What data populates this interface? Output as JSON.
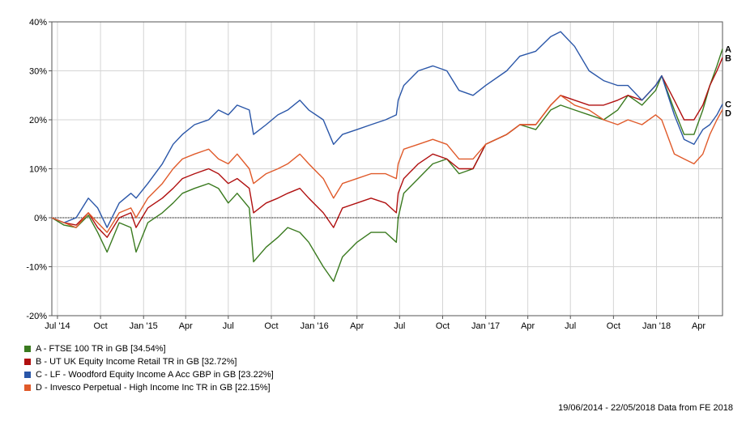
{
  "chart_data": {
    "type": "line",
    "x_range": [
      "2014-06-19",
      "2018-05-22"
    ],
    "ylim": [
      -20,
      40
    ],
    "y_ticks": [
      40,
      30,
      20,
      10,
      0,
      -10,
      -20
    ],
    "y_tick_labels": [
      "40%",
      "30%",
      "20%",
      "10%",
      "0%",
      "-10%",
      "-20%"
    ],
    "x_ticks": [
      "2014-07-01",
      "2014-10-01",
      "2015-01-01",
      "2015-04-01",
      "2015-07-01",
      "2015-10-01",
      "2016-01-01",
      "2016-04-01",
      "2016-07-01",
      "2016-10-01",
      "2017-01-01",
      "2017-04-01",
      "2017-07-01",
      "2017-10-01",
      "2018-01-01",
      "2018-04-01"
    ],
    "x_tick_labels": [
      "Jul '14",
      "Oct",
      "Jan '15",
      "Apr",
      "Jul",
      "Oct",
      "Jan '16",
      "Apr",
      "Jul",
      "Oct",
      "Jan '17",
      "Apr",
      "Jul",
      "Oct",
      "Jan '18",
      "Apr"
    ],
    "grid": true,
    "legend_position": "bottom-left",
    "series": [
      {
        "name": "A - FTSE 100 TR in GB [34.54%]",
        "label": "A",
        "color": "#3a7a1f",
        "points": [
          [
            "2014-06-19",
            0
          ],
          [
            "2014-07-15",
            -1.5
          ],
          [
            "2014-08-10",
            -2
          ],
          [
            "2014-09-05",
            0.5
          ],
          [
            "2014-09-25",
            -3
          ],
          [
            "2014-10-15",
            -7
          ],
          [
            "2014-11-10",
            -1
          ],
          [
            "2014-12-05",
            -2
          ],
          [
            "2014-12-16",
            -7
          ],
          [
            "2015-01-10",
            -1
          ],
          [
            "2015-02-10",
            1
          ],
          [
            "2015-03-05",
            3
          ],
          [
            "2015-03-25",
            5
          ],
          [
            "2015-04-20",
            6
          ],
          [
            "2015-05-20",
            7
          ],
          [
            "2015-06-10",
            6
          ],
          [
            "2015-07-01",
            3
          ],
          [
            "2015-07-20",
            5
          ],
          [
            "2015-08-15",
            2
          ],
          [
            "2015-08-24",
            -9
          ],
          [
            "2015-09-20",
            -6
          ],
          [
            "2015-10-15",
            -4
          ],
          [
            "2015-11-05",
            -2
          ],
          [
            "2015-12-01",
            -3
          ],
          [
            "2015-12-20",
            -5
          ],
          [
            "2016-01-20",
            -10
          ],
          [
            "2016-02-11",
            -13
          ],
          [
            "2016-03-01",
            -8
          ],
          [
            "2016-04-01",
            -5
          ],
          [
            "2016-05-01",
            -3
          ],
          [
            "2016-06-01",
            -3
          ],
          [
            "2016-06-24",
            -5
          ],
          [
            "2016-06-28",
            0
          ],
          [
            "2016-07-10",
            5
          ],
          [
            "2016-08-10",
            8
          ],
          [
            "2016-09-10",
            11
          ],
          [
            "2016-10-10",
            12
          ],
          [
            "2016-11-05",
            9
          ],
          [
            "2016-12-05",
            10
          ],
          [
            "2017-01-01",
            15
          ],
          [
            "2017-02-15",
            17
          ],
          [
            "2017-03-15",
            19
          ],
          [
            "2017-04-18",
            18
          ],
          [
            "2017-05-20",
            22
          ],
          [
            "2017-06-10",
            23
          ],
          [
            "2017-07-10",
            22
          ],
          [
            "2017-08-10",
            21
          ],
          [
            "2017-09-10",
            20
          ],
          [
            "2017-10-10",
            22
          ],
          [
            "2017-11-01",
            25
          ],
          [
            "2017-12-01",
            23
          ],
          [
            "2017-12-30",
            26
          ],
          [
            "2018-01-12",
            29
          ],
          [
            "2018-02-08",
            22
          ],
          [
            "2018-03-01",
            17
          ],
          [
            "2018-03-22",
            17
          ],
          [
            "2018-04-10",
            22
          ],
          [
            "2018-04-25",
            27
          ],
          [
            "2018-05-10",
            31
          ],
          [
            "2018-05-22",
            34.5
          ]
        ]
      },
      {
        "name": "B - UT UK Equity Income Retail TR in GB [32.72%]",
        "label": "B",
        "color": "#b01010",
        "points": [
          [
            "2014-06-19",
            0
          ],
          [
            "2014-07-15",
            -1
          ],
          [
            "2014-08-10",
            -1.5
          ],
          [
            "2014-09-05",
            1
          ],
          [
            "2014-09-25",
            -2
          ],
          [
            "2014-10-15",
            -4
          ],
          [
            "2014-11-10",
            0
          ],
          [
            "2014-12-05",
            1
          ],
          [
            "2014-12-16",
            -2
          ],
          [
            "2015-01-10",
            2
          ],
          [
            "2015-02-10",
            4
          ],
          [
            "2015-03-05",
            6
          ],
          [
            "2015-03-25",
            8
          ],
          [
            "2015-04-20",
            9
          ],
          [
            "2015-05-20",
            10
          ],
          [
            "2015-06-10",
            9
          ],
          [
            "2015-07-01",
            7
          ],
          [
            "2015-07-20",
            8
          ],
          [
            "2015-08-15",
            6
          ],
          [
            "2015-08-24",
            1
          ],
          [
            "2015-09-20",
            3
          ],
          [
            "2015-10-15",
            4
          ],
          [
            "2015-11-05",
            5
          ],
          [
            "2015-12-01",
            6
          ],
          [
            "2015-12-20",
            4
          ],
          [
            "2016-01-20",
            1
          ],
          [
            "2016-02-11",
            -2
          ],
          [
            "2016-03-01",
            2
          ],
          [
            "2016-04-01",
            3
          ],
          [
            "2016-05-01",
            4
          ],
          [
            "2016-06-01",
            3
          ],
          [
            "2016-06-24",
            1
          ],
          [
            "2016-06-28",
            5
          ],
          [
            "2016-07-10",
            8
          ],
          [
            "2016-08-10",
            11
          ],
          [
            "2016-09-10",
            13
          ],
          [
            "2016-10-10",
            12
          ],
          [
            "2016-11-05",
            10
          ],
          [
            "2016-12-05",
            10
          ],
          [
            "2017-01-01",
            15
          ],
          [
            "2017-02-15",
            17
          ],
          [
            "2017-03-15",
            19
          ],
          [
            "2017-04-18",
            19
          ],
          [
            "2017-05-20",
            23
          ],
          [
            "2017-06-10",
            25
          ],
          [
            "2017-07-10",
            24
          ],
          [
            "2017-08-10",
            23
          ],
          [
            "2017-09-10",
            23
          ],
          [
            "2017-10-10",
            24
          ],
          [
            "2017-11-01",
            25
          ],
          [
            "2017-12-01",
            24
          ],
          [
            "2017-12-30",
            27
          ],
          [
            "2018-01-12",
            29
          ],
          [
            "2018-02-08",
            24
          ],
          [
            "2018-03-01",
            20
          ],
          [
            "2018-03-22",
            20
          ],
          [
            "2018-04-10",
            23
          ],
          [
            "2018-04-25",
            27
          ],
          [
            "2018-05-10",
            30
          ],
          [
            "2018-05-22",
            32.7
          ]
        ]
      },
      {
        "name": "C - LF - Woodford Equity Income A Acc GBP in GB [23.22%]",
        "label": "C",
        "color": "#2a56a8",
        "points": [
          [
            "2014-06-19",
            0
          ],
          [
            "2014-07-15",
            -1
          ],
          [
            "2014-08-10",
            0
          ],
          [
            "2014-09-05",
            4
          ],
          [
            "2014-09-25",
            2
          ],
          [
            "2014-10-15",
            -2
          ],
          [
            "2014-11-10",
            3
          ],
          [
            "2014-12-05",
            5
          ],
          [
            "2014-12-16",
            4
          ],
          [
            "2015-01-10",
            7
          ],
          [
            "2015-02-10",
            11
          ],
          [
            "2015-03-05",
            15
          ],
          [
            "2015-03-25",
            17
          ],
          [
            "2015-04-20",
            19
          ],
          [
            "2015-05-20",
            20
          ],
          [
            "2015-06-10",
            22
          ],
          [
            "2015-07-01",
            21
          ],
          [
            "2015-07-20",
            23
          ],
          [
            "2015-08-15",
            22
          ],
          [
            "2015-08-24",
            17
          ],
          [
            "2015-09-20",
            19
          ],
          [
            "2015-10-15",
            21
          ],
          [
            "2015-11-05",
            22
          ],
          [
            "2015-12-01",
            24
          ],
          [
            "2015-12-20",
            22
          ],
          [
            "2016-01-20",
            20
          ],
          [
            "2016-02-11",
            15
          ],
          [
            "2016-03-01",
            17
          ],
          [
            "2016-04-01",
            18
          ],
          [
            "2016-05-01",
            19
          ],
          [
            "2016-06-01",
            20
          ],
          [
            "2016-06-24",
            21
          ],
          [
            "2016-06-28",
            24
          ],
          [
            "2016-07-10",
            27
          ],
          [
            "2016-08-10",
            30
          ],
          [
            "2016-09-10",
            31
          ],
          [
            "2016-10-10",
            30
          ],
          [
            "2016-11-05",
            26
          ],
          [
            "2016-12-05",
            25
          ],
          [
            "2017-01-01",
            27
          ],
          [
            "2017-02-15",
            30
          ],
          [
            "2017-03-15",
            33
          ],
          [
            "2017-04-18",
            34
          ],
          [
            "2017-05-20",
            37
          ],
          [
            "2017-06-10",
            38
          ],
          [
            "2017-07-10",
            35
          ],
          [
            "2017-08-10",
            30
          ],
          [
            "2017-09-10",
            28
          ],
          [
            "2017-10-10",
            27
          ],
          [
            "2017-11-01",
            27
          ],
          [
            "2017-12-01",
            24
          ],
          [
            "2017-12-30",
            27
          ],
          [
            "2018-01-12",
            29
          ],
          [
            "2018-02-08",
            21
          ],
          [
            "2018-03-01",
            16
          ],
          [
            "2018-03-22",
            15
          ],
          [
            "2018-04-10",
            18
          ],
          [
            "2018-04-25",
            19
          ],
          [
            "2018-05-10",
            21
          ],
          [
            "2018-05-22",
            23.2
          ]
        ]
      },
      {
        "name": "D - Invesco Perpetual - High Income Inc TR in GB [22.15%]",
        "label": "D",
        "color": "#e05a2a",
        "points": [
          [
            "2014-06-19",
            0
          ],
          [
            "2014-07-15",
            -1
          ],
          [
            "2014-08-10",
            -2
          ],
          [
            "2014-09-05",
            1
          ],
          [
            "2014-09-25",
            -1
          ],
          [
            "2014-10-15",
            -3
          ],
          [
            "2014-11-10",
            1
          ],
          [
            "2014-12-05",
            2
          ],
          [
            "2014-12-16",
            0
          ],
          [
            "2015-01-10",
            4
          ],
          [
            "2015-02-10",
            7
          ],
          [
            "2015-03-05",
            10
          ],
          [
            "2015-03-25",
            12
          ],
          [
            "2015-04-20",
            13
          ],
          [
            "2015-05-20",
            14
          ],
          [
            "2015-06-10",
            12
          ],
          [
            "2015-07-01",
            11
          ],
          [
            "2015-07-20",
            13
          ],
          [
            "2015-08-15",
            10
          ],
          [
            "2015-08-24",
            7
          ],
          [
            "2015-09-20",
            9
          ],
          [
            "2015-10-15",
            10
          ],
          [
            "2015-11-05",
            11
          ],
          [
            "2015-12-01",
            13
          ],
          [
            "2015-12-20",
            11
          ],
          [
            "2016-01-20",
            8
          ],
          [
            "2016-02-11",
            4
          ],
          [
            "2016-03-01",
            7
          ],
          [
            "2016-04-01",
            8
          ],
          [
            "2016-05-01",
            9
          ],
          [
            "2016-06-01",
            9
          ],
          [
            "2016-06-24",
            8
          ],
          [
            "2016-06-28",
            11
          ],
          [
            "2016-07-10",
            14
          ],
          [
            "2016-08-10",
            15
          ],
          [
            "2016-09-10",
            16
          ],
          [
            "2016-10-10",
            15
          ],
          [
            "2016-11-05",
            12
          ],
          [
            "2016-12-05",
            12
          ],
          [
            "2017-01-01",
            15
          ],
          [
            "2017-02-15",
            17
          ],
          [
            "2017-03-15",
            19
          ],
          [
            "2017-04-18",
            19
          ],
          [
            "2017-05-20",
            23
          ],
          [
            "2017-06-10",
            25
          ],
          [
            "2017-07-10",
            23
          ],
          [
            "2017-08-10",
            22
          ],
          [
            "2017-09-10",
            20
          ],
          [
            "2017-10-10",
            19
          ],
          [
            "2017-11-01",
            20
          ],
          [
            "2017-12-01",
            19
          ],
          [
            "2017-12-30",
            21
          ],
          [
            "2018-01-12",
            20
          ],
          [
            "2018-02-08",
            13
          ],
          [
            "2018-03-01",
            12
          ],
          [
            "2018-03-22",
            11
          ],
          [
            "2018-04-10",
            13
          ],
          [
            "2018-04-25",
            17
          ],
          [
            "2018-05-10",
            20
          ],
          [
            "2018-05-22",
            22.1
          ]
        ]
      }
    ]
  },
  "footer": {
    "text": "19/06/2014 - 22/05/2018 Data from FE 2018"
  }
}
